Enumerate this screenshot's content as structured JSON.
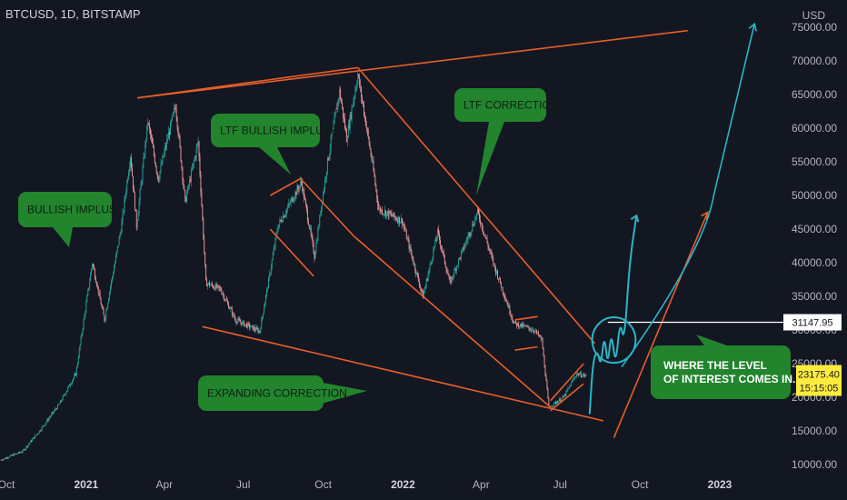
{
  "header": {
    "symbol": "BTCUSD, 1D, BITSTAMP"
  },
  "chart_data": {
    "type": "candlestick",
    "title": "",
    "xlabel": "",
    "ylabel": "USD",
    "ylim": [
      10000,
      75000
    ],
    "y_ticks": [
      10000,
      15000,
      20000,
      25000,
      30000,
      35000,
      40000,
      45000,
      50000,
      55000,
      60000,
      65000,
      70000,
      75000
    ],
    "y_tick_labels": [
      "10000.00",
      "15000.00",
      "20000.00",
      "25000.00",
      "30000.00",
      "35000.00",
      "40000.00",
      "45000.00",
      "50000.00",
      "55000.00",
      "60000.00",
      "65000.00",
      "70000.00",
      "75000.00"
    ],
    "x_ticks": [
      {
        "label": "Oct",
        "date": "2020-10-01",
        "bold": false
      },
      {
        "label": "2021",
        "date": "2021-01-01",
        "bold": true
      },
      {
        "label": "Apr",
        "date": "2021-04-01",
        "bold": false
      },
      {
        "label": "Jul",
        "date": "2021-07-01",
        "bold": false
      },
      {
        "label": "Oct",
        "date": "2021-10-01",
        "bold": false
      },
      {
        "label": "2022",
        "date": "2022-01-01",
        "bold": true
      },
      {
        "label": "Apr",
        "date": "2022-04-01",
        "bold": false
      },
      {
        "label": "Jul",
        "date": "2022-07-01",
        "bold": false
      },
      {
        "label": "Oct",
        "date": "2022-10-01",
        "bold": false
      },
      {
        "label": "2023",
        "date": "2023-01-01",
        "bold": true
      }
    ],
    "price_path": [
      [
        "2020-09-25",
        10700
      ],
      [
        "2020-10-20",
        12000
      ],
      [
        "2020-11-10",
        15300
      ],
      [
        "2020-12-01",
        19000
      ],
      [
        "2020-12-20",
        23500
      ],
      [
        "2021-01-08",
        40000
      ],
      [
        "2021-01-22",
        31500
      ],
      [
        "2021-02-10",
        45000
      ],
      [
        "2021-02-21",
        56000
      ],
      [
        "2021-02-28",
        45500
      ],
      [
        "2021-03-13",
        61000
      ],
      [
        "2021-03-25",
        52500
      ],
      [
        "2021-04-14",
        63500
      ],
      [
        "2021-04-25",
        49000
      ],
      [
        "2021-05-10",
        58000
      ],
      [
        "2021-05-19",
        37000
      ],
      [
        "2021-06-05",
        36000
      ],
      [
        "2021-06-22",
        31500
      ],
      [
        "2021-07-20",
        29800
      ],
      [
        "2021-08-10",
        45500
      ],
      [
        "2021-09-06",
        52000
      ],
      [
        "2021-09-21",
        41000
      ],
      [
        "2021-10-06",
        55000
      ],
      [
        "2021-10-20",
        65500
      ],
      [
        "2021-10-28",
        58500
      ],
      [
        "2021-11-10",
        68000
      ],
      [
        "2021-11-27",
        54500
      ],
      [
        "2021-12-04",
        48000
      ],
      [
        "2021-12-31",
        46200
      ],
      [
        "2022-01-24",
        35000
      ],
      [
        "2022-02-10",
        44500
      ],
      [
        "2022-02-24",
        37000
      ],
      [
        "2022-03-28",
        47500
      ],
      [
        "2022-04-15",
        40000
      ],
      [
        "2022-05-09",
        31000
      ],
      [
        "2022-06-01",
        30000
      ],
      [
        "2022-06-10",
        28500
      ],
      [
        "2022-06-18",
        18500
      ],
      [
        "2022-07-05",
        20000
      ],
      [
        "2022-07-20",
        23500
      ],
      [
        "2022-07-31",
        23175
      ]
    ],
    "lines": [
      {
        "name": "upper-expansion",
        "color": "#e65f28",
        "points": [
          [
            "2021-03-01",
            64500
          ],
          [
            "2022-11-25",
            74500
          ]
        ]
      },
      {
        "name": "upper-touch",
        "color": "#e65f28",
        "points": [
          [
            "2021-03-01",
            64500
          ],
          [
            "2021-11-10",
            69000
          ]
        ]
      },
      {
        "name": "lower-expansion",
        "color": "#e65f28",
        "points": [
          [
            "2021-05-15",
            30500
          ],
          [
            "2022-08-20",
            16500
          ]
        ]
      },
      {
        "name": "descending-from-ath",
        "color": "#e65f28",
        "points": [
          [
            "2021-11-10",
            69000
          ],
          [
            "2022-08-10",
            28000
          ]
        ]
      },
      {
        "name": "ltf-channel-top",
        "color": "#e65f28",
        "points": [
          [
            "2021-09-05",
            52500
          ],
          [
            "2021-11-05",
            44000
          ],
          [
            "2022-06-20",
            18500
          ]
        ]
      },
      {
        "name": "ltf-channel-bottom",
        "color": "#e65f28",
        "points": [
          [
            "2021-08-01",
            45000
          ],
          [
            "2021-09-20",
            38000
          ]
        ]
      },
      {
        "name": "ltf-channel-top-short",
        "color": "#e65f28",
        "points": [
          [
            "2021-08-01",
            50000
          ],
          [
            "2021-09-05",
            52500
          ]
        ]
      },
      {
        "name": "flag-top",
        "color": "#e65f28",
        "points": [
          [
            "2022-05-10",
            31500
          ],
          [
            "2022-06-05",
            32000
          ]
        ]
      },
      {
        "name": "flag-bottom",
        "color": "#e65f28",
        "points": [
          [
            "2022-05-10",
            27000
          ],
          [
            "2022-06-05",
            27500
          ]
        ]
      },
      {
        "name": "bear-flag-top",
        "color": "#e65f28",
        "points": [
          [
            "2022-06-20",
            19500
          ],
          [
            "2022-07-28",
            25000
          ]
        ]
      },
      {
        "name": "bear-flag-bottom",
        "color": "#e65f28",
        "points": [
          [
            "2022-06-20",
            18000
          ],
          [
            "2022-07-28",
            22000
          ]
        ]
      },
      {
        "name": "orange-projection",
        "color": "#e65f28",
        "points": [
          [
            "2022-09-01",
            14000
          ],
          [
            "2022-12-18",
            47500
          ]
        ]
      },
      {
        "name": "level-31147",
        "color": "#ffffff",
        "points": [
          [
            "2022-08-25",
            31147.95
          ],
          [
            "2023-03-30",
            31147.95
          ]
        ]
      }
    ],
    "projection_path_teal": [
      [
        "2022-08-04",
        17500
      ],
      [
        "2022-08-08",
        25500
      ],
      [
        "2022-08-13",
        27000
      ],
      [
        "2022-08-17",
        24500
      ],
      [
        "2022-08-21",
        29500
      ],
      [
        "2022-08-25",
        24500
      ],
      [
        "2022-08-29",
        30000
      ],
      [
        "2022-09-03",
        24500
      ],
      [
        "2022-09-08",
        31500
      ],
      [
        "2022-09-13",
        28000
      ],
      [
        "2022-09-19",
        40000
      ],
      [
        "2022-09-27",
        47000
      ]
    ],
    "teal_big_arrow": [
      [
        "2022-09-10",
        24500
      ],
      [
        "2022-12-25",
        50000
      ],
      [
        "2023-02-10",
        75500
      ]
    ],
    "circle": {
      "center_date": "2022-09-01",
      "center_price": 28500,
      "radius_days": 25
    },
    "level_label": "31147.95",
    "current_price_label": "23175.40",
    "countdown_label": "15:15:05",
    "callouts": [
      {
        "name": "bullish-impulse",
        "text": [
          "BULLISH IMPLUSE"
        ]
      },
      {
        "name": "ltf-bullish-impulse",
        "text": [
          "LTF BULLISH IMPLUSE"
        ]
      },
      {
        "name": "ltf-correction",
        "text": [
          "LTF CORRECTION"
        ]
      },
      {
        "name": "expanding-correction",
        "text": [
          "EXPANDING CORRECTION"
        ]
      },
      {
        "name": "level-of-interest",
        "text": [
          "WHERE THE LEVEL",
          "OF INTEREST COMES IN."
        ]
      }
    ]
  },
  "colors": {
    "background": "#131722",
    "candle_up": "#26a69a",
    "candle_down": "#ef9a9a",
    "trend_line": "#e65f28",
    "projection": "#2bb5c6",
    "callout_bg": "#22842d",
    "price_label_bg": "#ffeb3b"
  }
}
